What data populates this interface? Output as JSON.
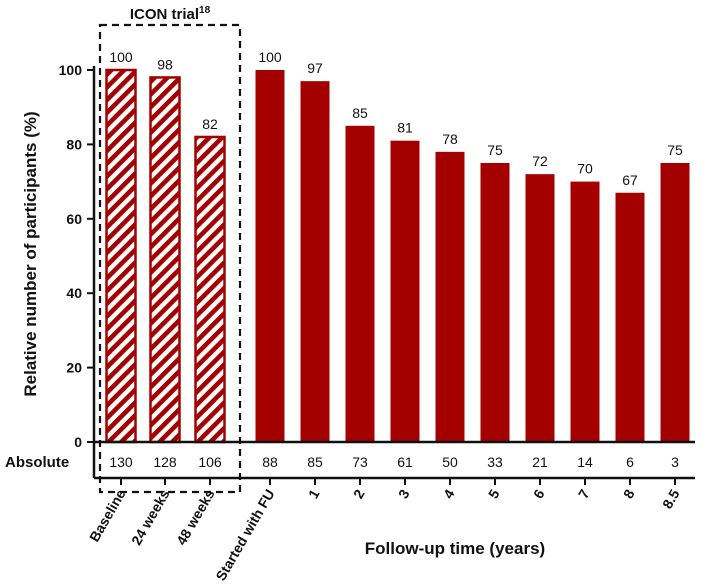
{
  "chart_data": {
    "type": "bar",
    "ylabel": "Relative number of participants (%)",
    "xlabel": "Follow-up time (years)",
    "ylim": [
      0,
      100
    ],
    "yticks": [
      0,
      20,
      40,
      60,
      80,
      100
    ],
    "categories": [
      "Baseline",
      "24 weeks",
      "48 weeks",
      "Started with FU",
      "1",
      "2",
      "3",
      "4",
      "5",
      "6",
      "7",
      "8",
      "8.5"
    ],
    "values": [
      100,
      98,
      82,
      100,
      97,
      85,
      81,
      78,
      75,
      72,
      70,
      67,
      75
    ],
    "value_labels": [
      "100",
      "98",
      "82",
      "100",
      "97",
      "85",
      "81",
      "78",
      "75",
      "72",
      "70",
      "67",
      "75"
    ],
    "hatched": [
      true,
      true,
      true,
      false,
      false,
      false,
      false,
      false,
      false,
      false,
      false,
      false,
      false
    ],
    "absolute_label": "Absolute",
    "absolute_values": [
      "130",
      "128",
      "106",
      "88",
      "85",
      "73",
      "61",
      "50",
      "33",
      "21",
      "14",
      "6",
      "3"
    ],
    "group_box": {
      "label": "ICON trial",
      "superscript": "18",
      "first_index": 0,
      "last_index": 2
    },
    "grid": false,
    "bar_color": "#a50000"
  }
}
